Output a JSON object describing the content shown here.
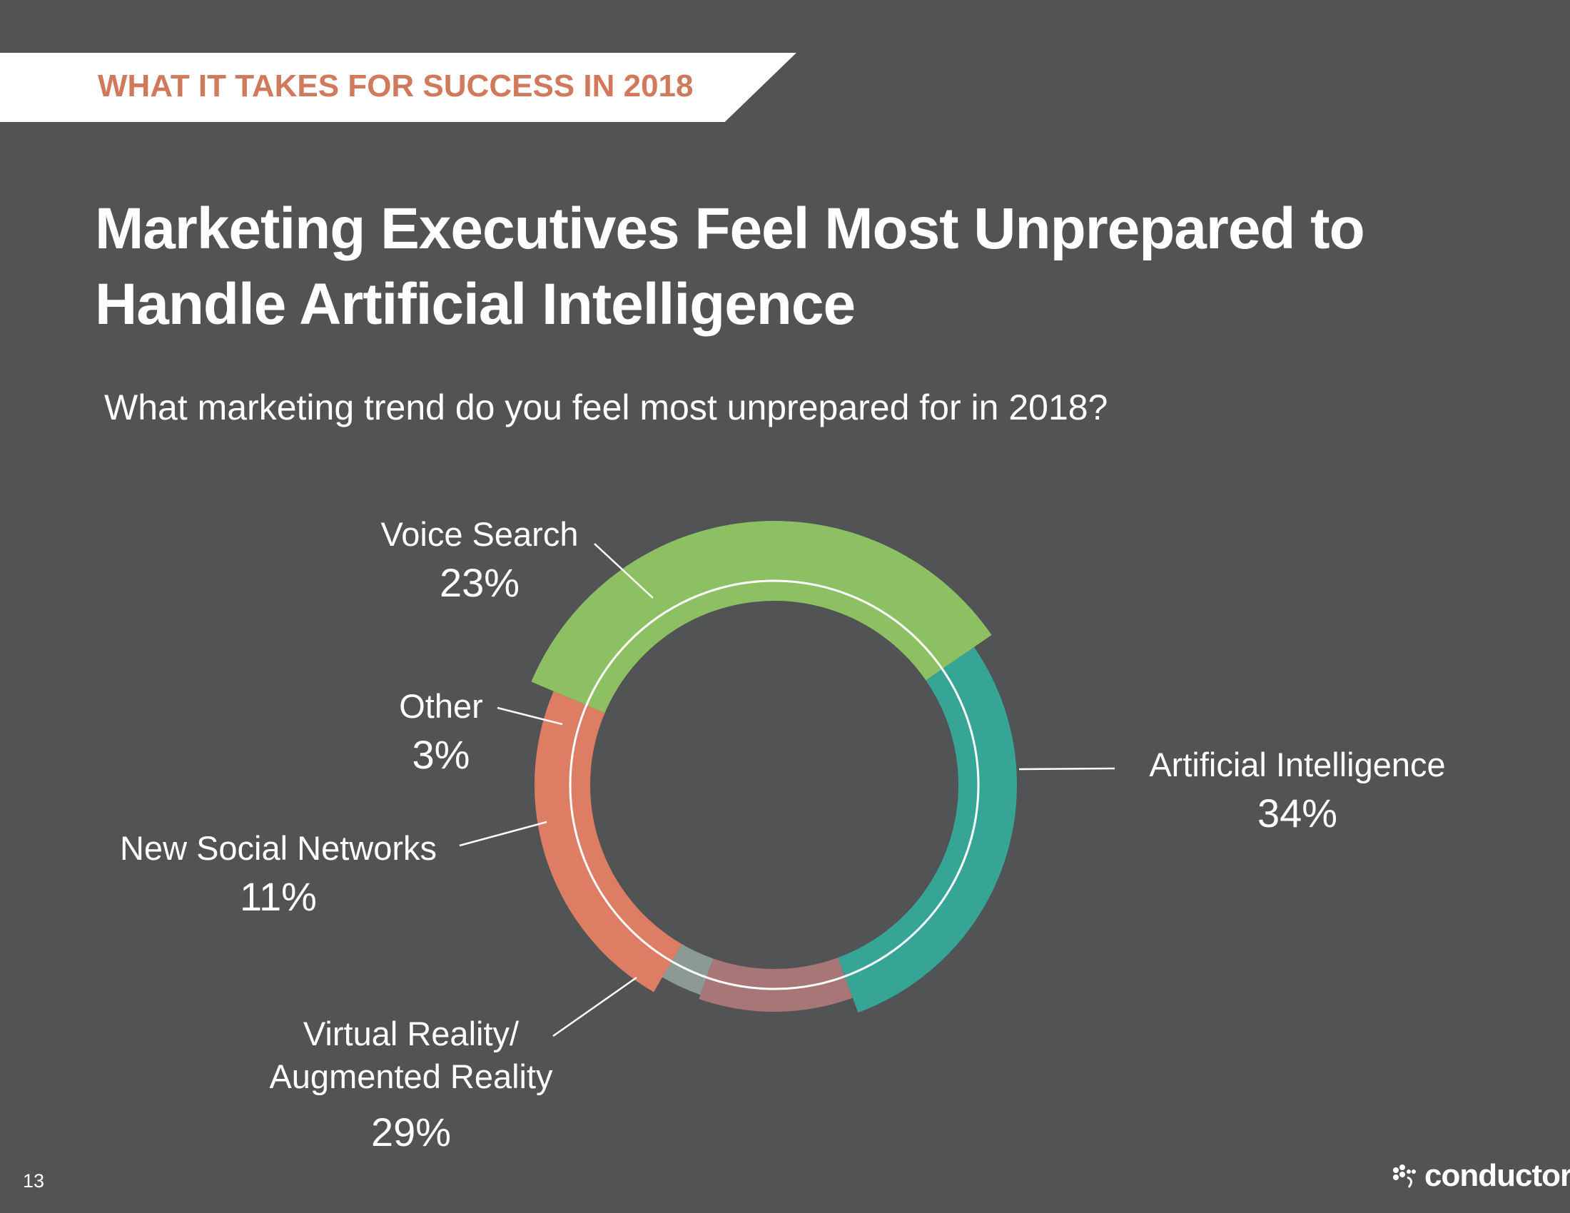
{
  "banner": {
    "text": "WHAT IT TAKES FOR SUCCESS IN 2018"
  },
  "title": "Marketing Executives Feel Most Unprepared to Handle Artificial Intelligence",
  "question": "What marketing trend do you feel most unprepared for in 2018?",
  "chart_data": {
    "type": "pie",
    "style": "donut",
    "title": "What marketing trend do you feel most unprepared for in 2018?",
    "slices": [
      {
        "label": "Artificial Intelligence",
        "value": 34,
        "display": "34%",
        "color": "#8cc063"
      },
      {
        "label": "Virtual Reality/ Augmented Reality",
        "value": 29,
        "display": "29%",
        "color": "#36a596"
      },
      {
        "label": "New Social Networks",
        "value": 11,
        "display": "11%",
        "color": "#a97677"
      },
      {
        "label": "Other",
        "value": 3,
        "display": "3%",
        "color": "#8b9a95"
      },
      {
        "label": "Voice Search",
        "value": 23,
        "display": "23%",
        "color": "#dd7d63"
      }
    ]
  },
  "labels": {
    "ai": {
      "name": "Artificial Intelligence",
      "pct": "34%"
    },
    "vr": {
      "name1": "Virtual Reality/",
      "name2": "Augmented Reality",
      "pct": "29%"
    },
    "social": {
      "name": "New Social Networks",
      "pct": "11%"
    },
    "other": {
      "name": "Other",
      "pct": "3%"
    },
    "voice": {
      "name": "Voice Search",
      "pct": "23%"
    }
  },
  "page_number": "13",
  "logo": {
    "text": "conductor"
  }
}
